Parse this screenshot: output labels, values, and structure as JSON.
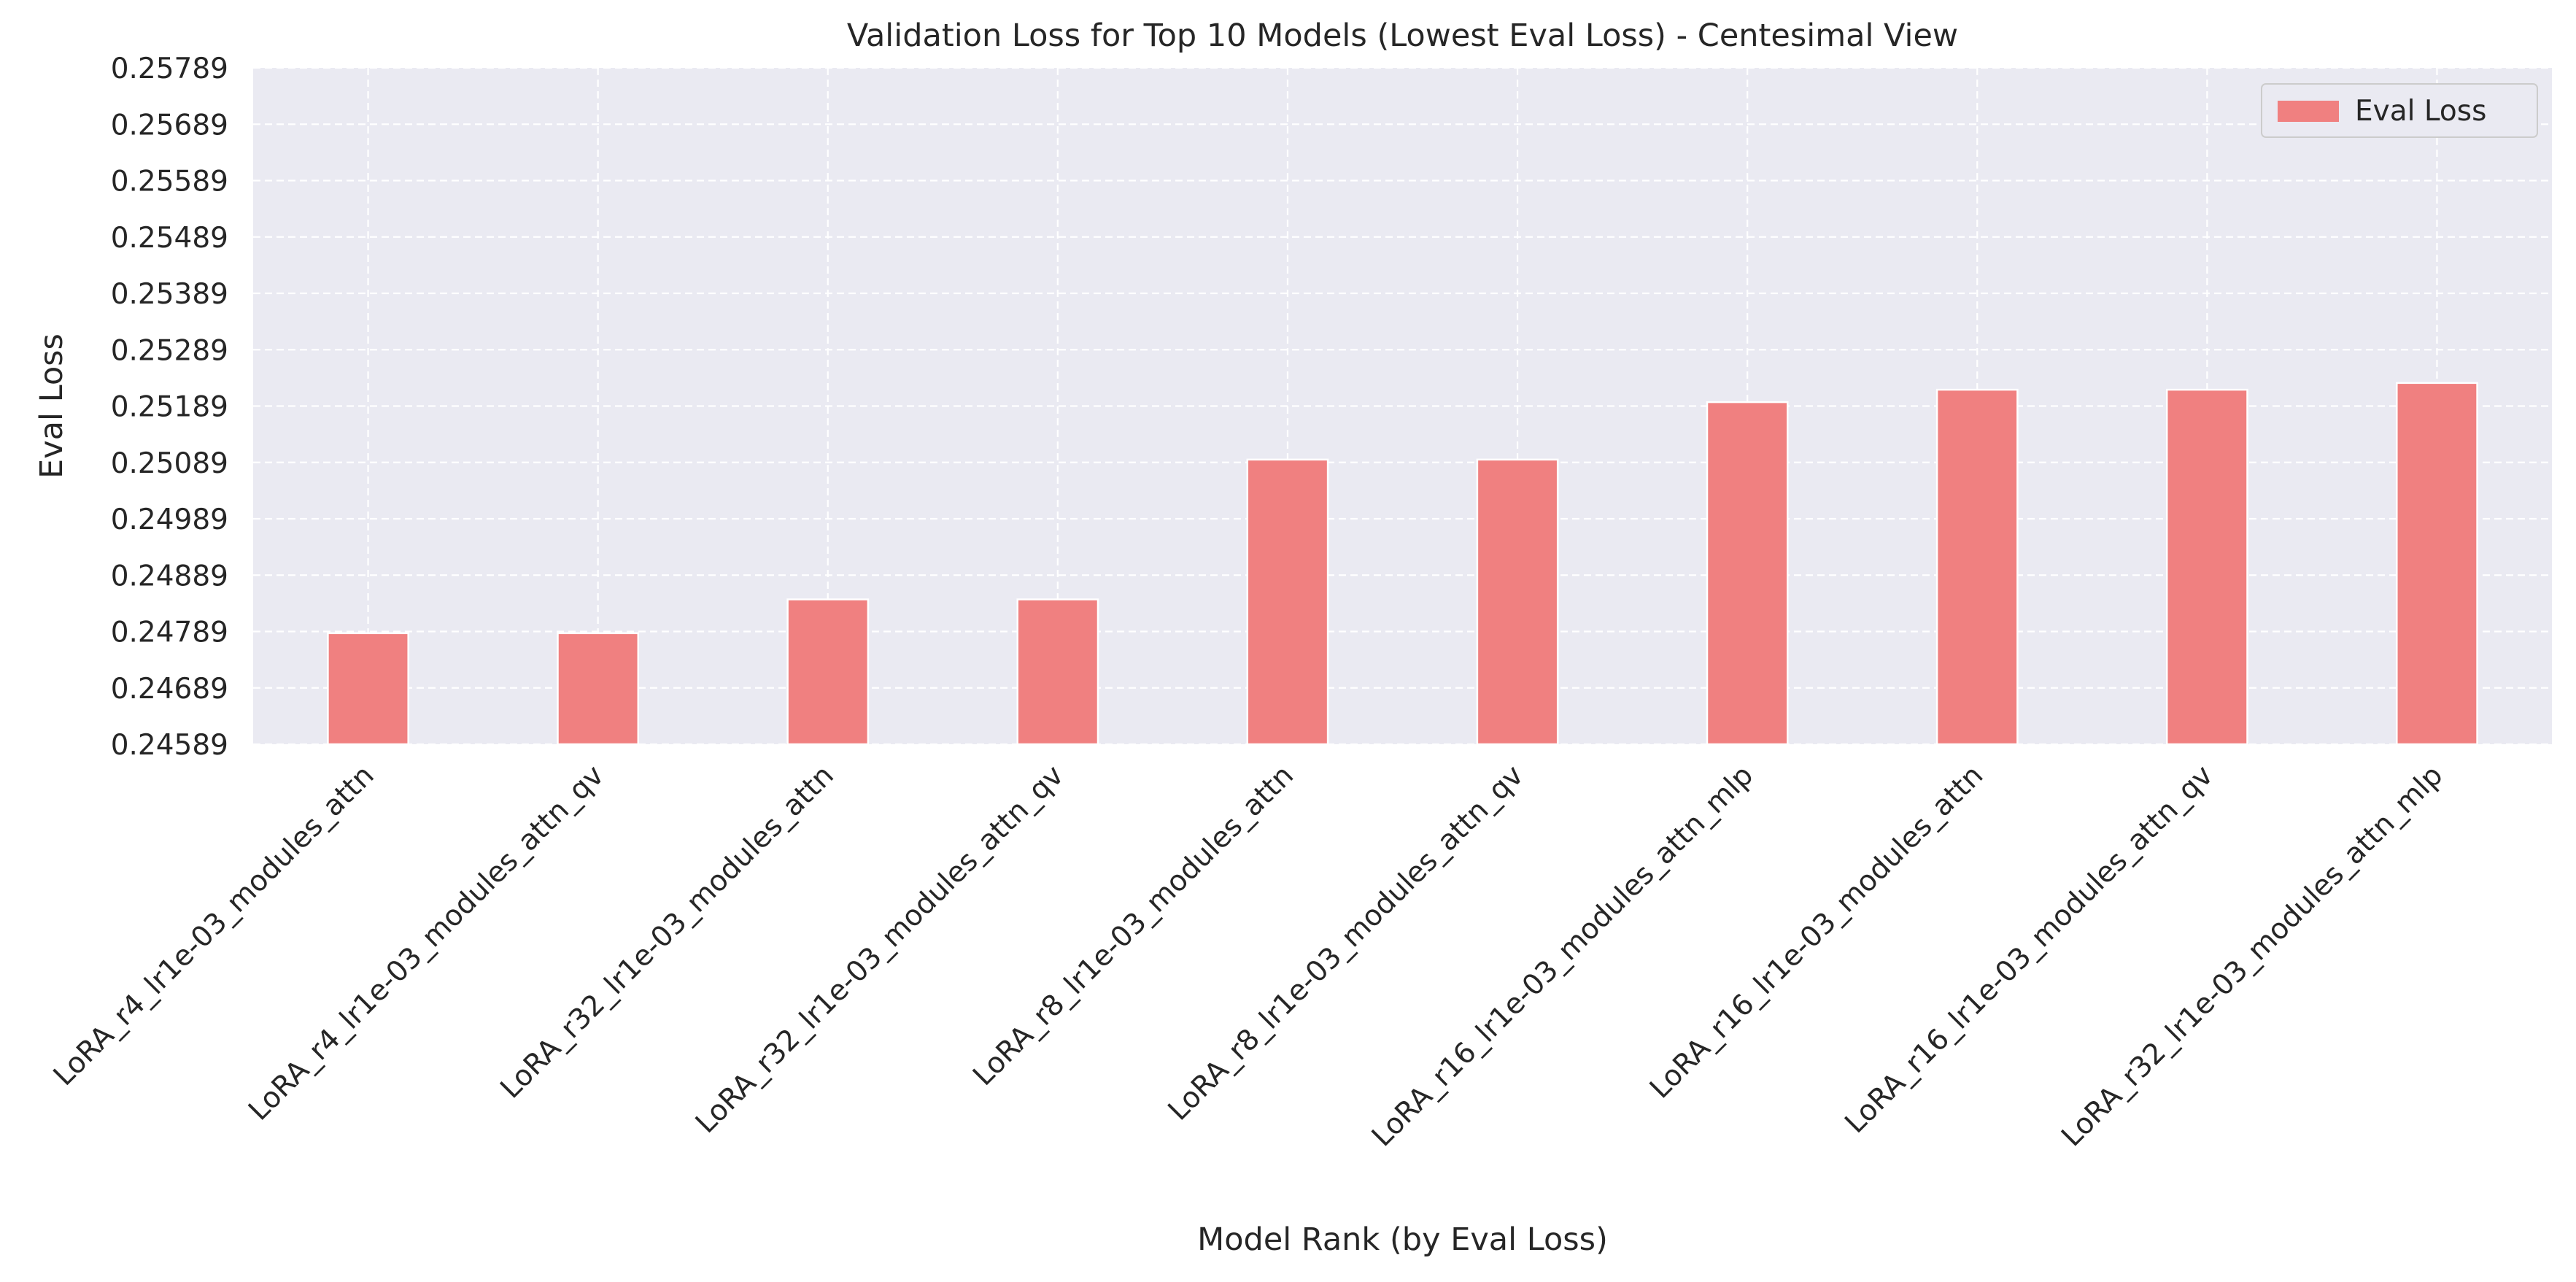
{
  "chart_data": {
    "type": "bar",
    "title": "Validation Loss for Top 10 Models (Lowest Eval Loss) - Centesimal View",
    "xlabel": "Model Rank (by Eval Loss)",
    "ylabel": "Eval Loss",
    "categories": [
      "LoRA_r4_lr1e-03_modules_attn",
      "LoRA_r4_lr1e-03_modules_attn_qv",
      "LoRA_r32_lr1e-03_modules_attn",
      "LoRA_r32_lr1e-03_modules_attn_qv",
      "LoRA_r8_lr1e-03_modules_attn",
      "LoRA_r8_lr1e-03_modules_attn_qv",
      "LoRA_r16_lr1e-03_modules_attn_mlp",
      "LoRA_r16_lr1e-03_modules_attn",
      "LoRA_r16_lr1e-03_modules_attn_qv",
      "LoRA_r32_lr1e-03_modules_attn_mlp"
    ],
    "series": [
      {
        "name": "Eval Loss",
        "color": "#f08080",
        "values": [
          0.24786,
          0.24786,
          0.24846,
          0.24846,
          0.25094,
          0.25094,
          0.25196,
          0.25218,
          0.25218,
          0.2523
        ]
      }
    ],
    "ylim": [
      0.24589,
      0.25789
    ],
    "yticks": [
      "0.24589",
      "0.24689",
      "0.24789",
      "0.24889",
      "0.24989",
      "0.25089",
      "0.25189",
      "0.25289",
      "0.25389",
      "0.25489",
      "0.25589",
      "0.25689",
      "0.25789"
    ],
    "grid": true,
    "legend_position": "top-right",
    "colors": {
      "plot_background": "#eaeaf2",
      "grid": "#ffffff",
      "bar_edge": "#ffffff",
      "text": "#262626"
    }
  }
}
